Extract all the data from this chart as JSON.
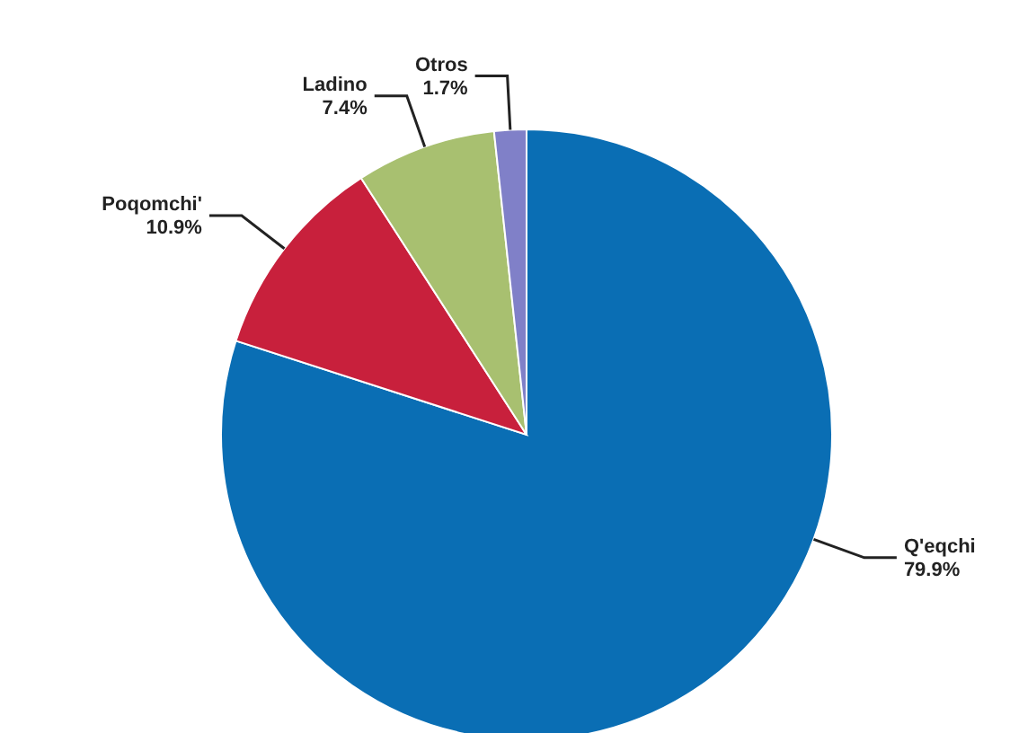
{
  "chart_data": {
    "type": "pie",
    "categories": [
      "Q'eqchi",
      "Poqomchi'",
      "Ladino",
      "Otros"
    ],
    "values": [
      79.9,
      10.9,
      7.4,
      1.7
    ],
    "value_labels": [
      "79.9%",
      "10.9%",
      "7.4%",
      "1.7%"
    ],
    "colors": [
      "#0a6eb4",
      "#c8203c",
      "#a8c070",
      "#8080c8"
    ],
    "legend": false
  }
}
